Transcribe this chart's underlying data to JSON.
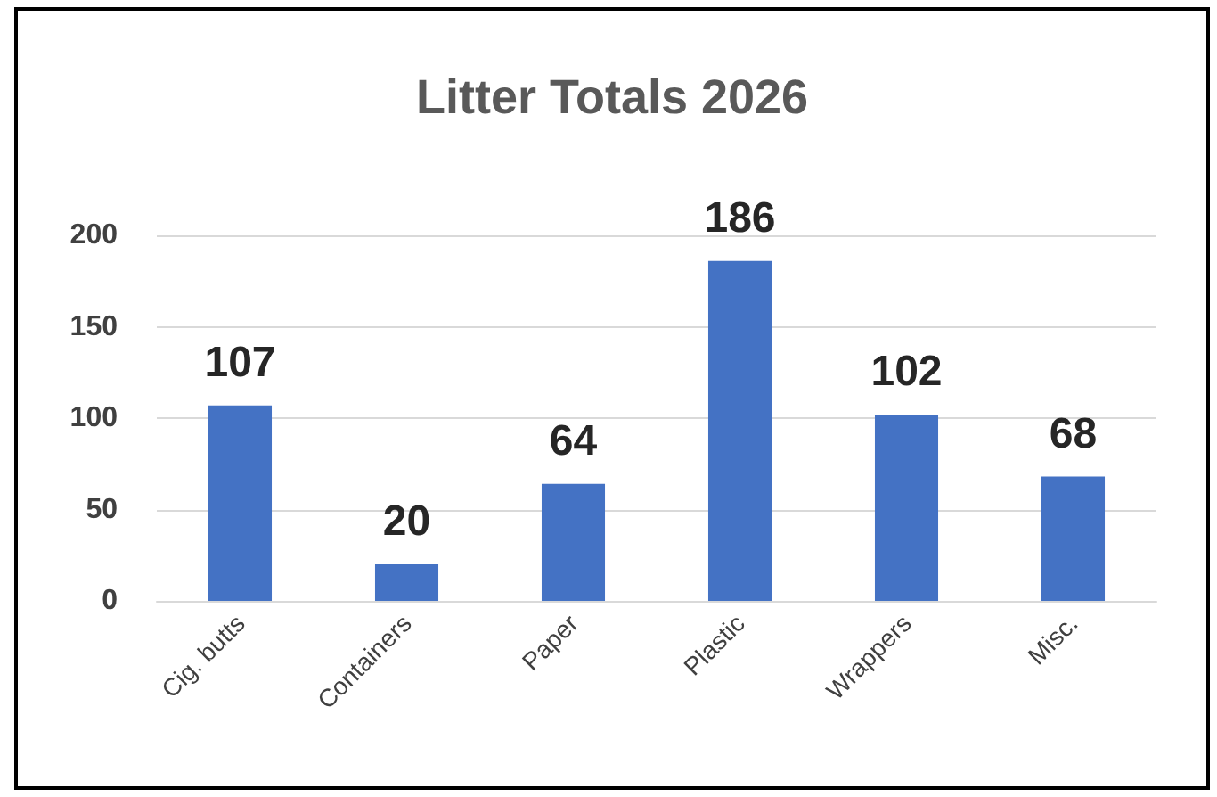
{
  "chart_data": {
    "type": "bar",
    "title": "Litter Totals 2026",
    "categories": [
      "Cig. butts",
      "Containers",
      "Paper",
      "Plastic",
      "Wrappers",
      "Misc."
    ],
    "values": [
      107,
      20,
      64,
      186,
      102,
      68
    ],
    "color": "#4472c4",
    "ylim": [
      0,
      200
    ],
    "yticks": [
      0,
      50,
      100,
      150,
      200
    ],
    "grid": "y",
    "data_labels": true
  }
}
